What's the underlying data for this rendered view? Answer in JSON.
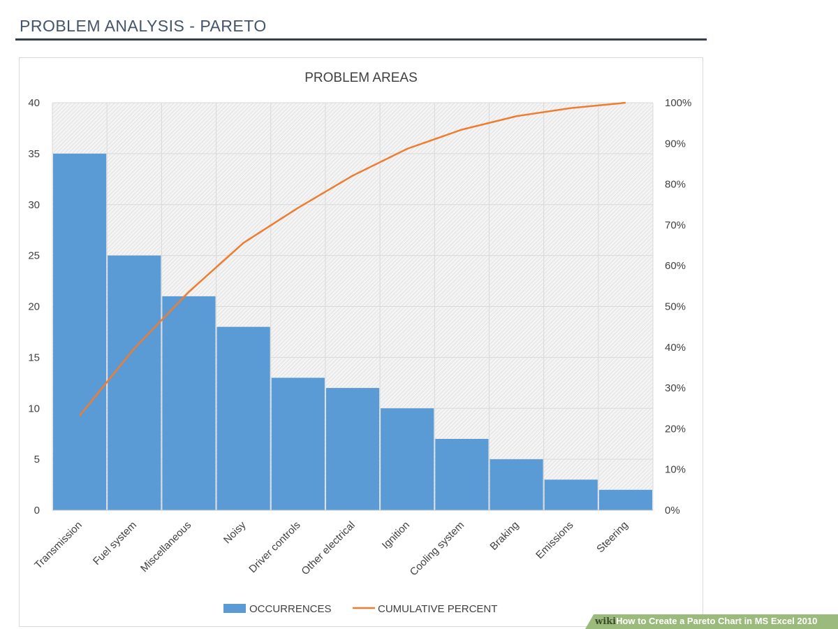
{
  "header": {
    "title": "PROBLEM ANALYSIS - PARETO"
  },
  "watermark": {
    "brand": "wiki",
    "text": "How to Create a Pareto Chart in MS Excel 2010"
  },
  "chart_data": {
    "type": "bar",
    "title": "PROBLEM AREAS",
    "categories": [
      "Transmission",
      "Fuel system",
      "Miscellaneous",
      "Noisy",
      "Driver controls",
      "Other electrical",
      "Ignition",
      "Cooling system",
      "Braking",
      "Emissions",
      "Steering"
    ],
    "series": [
      {
        "name": "OCCURRENCES",
        "type": "bar",
        "axis": "left",
        "color": "#5b9bd5",
        "values": [
          35,
          25,
          21,
          18,
          13,
          12,
          10,
          7,
          5,
          3,
          2
        ]
      },
      {
        "name": "CUMULATIVE PERCENT",
        "type": "line",
        "axis": "right",
        "color": "#ed7d31",
        "values": [
          23.2,
          39.7,
          53.6,
          65.6,
          74.2,
          82.1,
          88.7,
          93.4,
          96.7,
          98.7,
          100
        ]
      }
    ],
    "ylim": [
      0,
      40
    ],
    "yticks": [
      0,
      5,
      10,
      15,
      20,
      25,
      30,
      35,
      40
    ],
    "y2lim": [
      0,
      100
    ],
    "y2ticks": [
      "0%",
      "10%",
      "20%",
      "30%",
      "40%",
      "50%",
      "60%",
      "70%",
      "80%",
      "90%",
      "100%"
    ],
    "grid": true,
    "legend": "bottom"
  }
}
